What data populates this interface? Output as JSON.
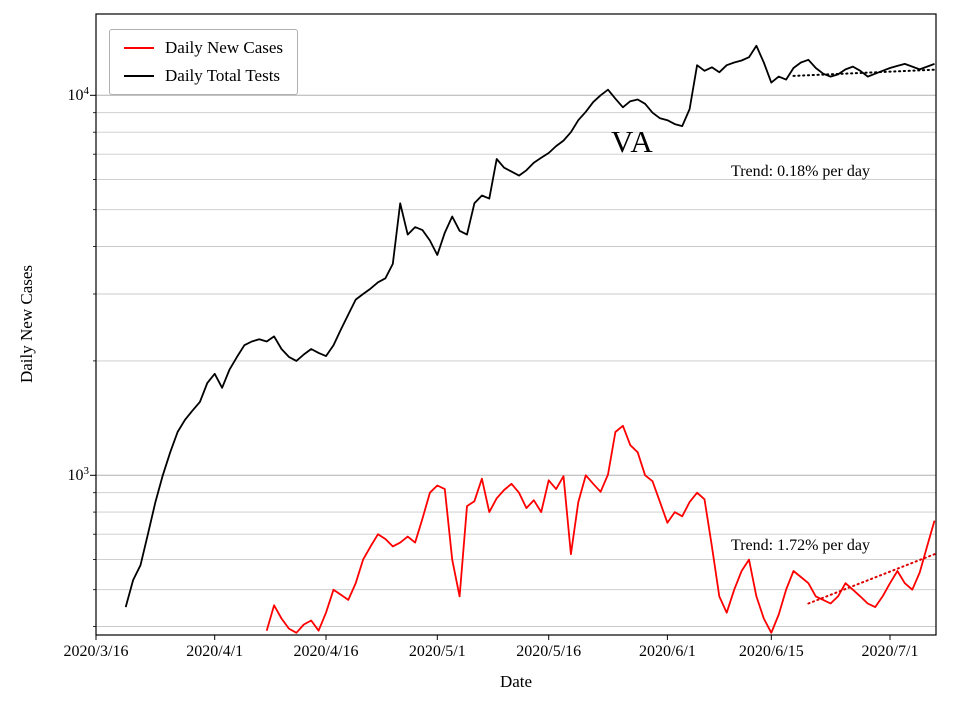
{
  "chart_data": {
    "type": "line",
    "title_annotation": "VA",
    "xlabel": "Date",
    "ylabel": "Daily New Cases",
    "y_scale": "log",
    "ylim": [
      380,
      16370
    ],
    "x_range_days": [
      0,
      113.2
    ],
    "x_start_date": "2020/3/16",
    "x_tick_labels": [
      "2020/3/16",
      "2020/4/1",
      "2020/4/16",
      "2020/5/1",
      "2020/5/16",
      "2020/6/1",
      "2020/6/15",
      "2020/7/1"
    ],
    "x_tick_days": [
      0,
      16,
      31,
      46,
      61,
      77,
      91,
      107
    ],
    "y_major_ticks": [
      {
        "base": "10",
        "exp": "3",
        "value": 1000
      },
      {
        "base": "10",
        "exp": "4",
        "value": 10000
      }
    ],
    "y_grid_minor": [
      400,
      500,
      600,
      700,
      800,
      900,
      2000,
      3000,
      4000,
      5000,
      6000,
      7000,
      8000,
      9000
    ],
    "y_grid_major": [
      1000,
      10000
    ],
    "grid": true,
    "colors": {
      "grid_minor": "#c9c9c9",
      "grid_major": "#b0b0b0",
      "frame": "#000000",
      "new_cases": "#ff0000",
      "total_tests": "#000000",
      "background": "#ffffff"
    },
    "legend": {
      "position": "upper left",
      "entries": [
        {
          "label": "Daily New Cases",
          "color": "#ff0000"
        },
        {
          "label": "Daily Total Tests",
          "color": "#000000"
        }
      ]
    },
    "series": [
      {
        "name": "Daily New Cases",
        "data_name": "daily-new-cases-line",
        "color": "#ff0000",
        "start_date": "2020/4/8",
        "start_day": 23,
        "values": [
          390,
          455,
          420,
          395,
          385,
          405,
          415,
          390,
          435,
          500,
          485,
          470,
          520,
          600,
          650,
          700,
          680,
          650,
          665,
          690,
          665,
          770,
          900,
          940,
          920,
          600,
          480,
          830,
          855,
          980,
          800,
          870,
          915,
          950,
          900,
          820,
          860,
          800,
          970,
          920,
          995,
          620,
          850,
          1000,
          950,
          905,
          1005,
          1300,
          1350,
          1200,
          1150,
          1000,
          965,
          850,
          750,
          800,
          780,
          850,
          900,
          865,
          650,
          480,
          435,
          500,
          560,
          600,
          480,
          420,
          385,
          430,
          500,
          560,
          540,
          520,
          480,
          470,
          460,
          480,
          520,
          500,
          480,
          460,
          450,
          480,
          520,
          560,
          520,
          500,
          555,
          650,
          760
        ]
      },
      {
        "name": "Daily Total Tests",
        "data_name": "daily-total-tests-line",
        "color": "#000000",
        "start_date": "2020/3/20",
        "start_day": 4,
        "values": [
          450,
          530,
          580,
          700,
          850,
          1000,
          1150,
          1300,
          1400,
          1480,
          1560,
          1750,
          1850,
          1700,
          1900,
          2050,
          2200,
          2250,
          2280,
          2250,
          2320,
          2150,
          2050,
          2000,
          2080,
          2150,
          2100,
          2060,
          2200,
          2420,
          2650,
          2900,
          3000,
          3100,
          3220,
          3300,
          3600,
          5200,
          4300,
          4500,
          4420,
          4150,
          3800,
          4350,
          4800,
          4400,
          4300,
          5200,
          5450,
          5350,
          6800,
          6450,
          6300,
          6150,
          6350,
          6650,
          6850,
          7050,
          7350,
          7600,
          8000,
          8600,
          9050,
          9600,
          10000,
          10350,
          9800,
          9300,
          9650,
          9750,
          9500,
          9000,
          8700,
          8600,
          8400,
          8300,
          9200,
          12000,
          11600,
          11850,
          11500,
          12000,
          12200,
          12350,
          12600,
          13500,
          12200,
          10800,
          11200,
          11000,
          11800,
          12200,
          12400,
          11800,
          11400,
          11200,
          11350,
          11700,
          11900,
          11600,
          11200,
          11400,
          11600,
          11800,
          11950,
          12100,
          11900,
          11700,
          11900,
          12100
        ]
      }
    ],
    "trends": [
      {
        "label": "Trend: 0.18% per day",
        "data_name": "total-tests-trend-line",
        "series": "Daily Total Tests",
        "rate_percent_per_day": 0.18,
        "color": "#000000",
        "start_day": 94,
        "end_day": 113,
        "start_value": 11250,
        "end_value": 11680
      },
      {
        "label": "Trend: 1.72% per day",
        "data_name": "new-cases-trend-line",
        "series": "Daily New Cases",
        "rate_percent_per_day": 1.72,
        "color": "#dd0000",
        "start_day": 96,
        "end_day": 113,
        "start_value": 460,
        "end_value": 620
      }
    ]
  }
}
